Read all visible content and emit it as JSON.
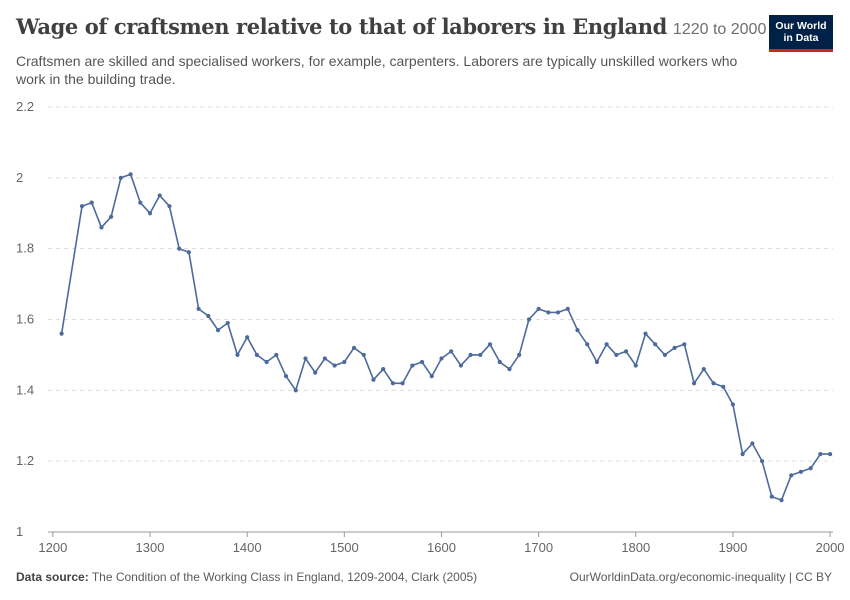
{
  "header": {
    "title": "Wage of craftsmen relative to that of laborers in England",
    "date_range": "1220 to 2000",
    "subtitle": "Craftsmen are skilled and specialised workers, for example, carpenters. Laborers are typically unskilled workers who work in the building trade."
  },
  "logo": {
    "line1": "Our World",
    "line2": "in Data",
    "bg": "#002147",
    "accent": "#ce261e"
  },
  "footer": {
    "source_label": "Data source:",
    "source_text": "The Condition of the Working Class in England, 1209-2004, Clark (2005)",
    "url_license": "OurWorldinData.org/economic-inequality | CC BY"
  },
  "chart_data": {
    "type": "line",
    "title": "Wage of craftsmen relative to that of laborers in England",
    "xlabel": "",
    "ylabel": "",
    "xlim": [
      1195,
      2003
    ],
    "ylim": [
      1,
      2.2
    ],
    "x_ticks": [
      1200,
      1300,
      1400,
      1500,
      1600,
      1700,
      1800,
      1900,
      2000
    ],
    "y_ticks": [
      1,
      1.2,
      1.4,
      1.6,
      1.8,
      2,
      2.2
    ],
    "grid": true,
    "color": "#4c6a9c",
    "series": [
      {
        "x": [
          1209,
          1230,
          1240,
          1250,
          1260,
          1270,
          1280,
          1290,
          1300,
          1310,
          1320,
          1330,
          1340,
          1350,
          1360,
          1370,
          1380,
          1390,
          1400,
          1410,
          1420,
          1430,
          1440,
          1450,
          1460,
          1470,
          1480,
          1490,
          1500,
          1510,
          1520,
          1530,
          1540,
          1550,
          1560,
          1570,
          1580,
          1590,
          1600,
          1610,
          1620,
          1630,
          1640,
          1650,
          1660,
          1670,
          1680,
          1690,
          1700,
          1710,
          1720,
          1730,
          1740,
          1750,
          1760,
          1770,
          1780,
          1790,
          1800,
          1810,
          1820,
          1830,
          1840,
          1850,
          1860,
          1870,
          1880,
          1890,
          1900,
          1910,
          1920,
          1930,
          1940,
          1950,
          1960,
          1970,
          1980,
          1990,
          2000
        ],
        "y": [
          1.56,
          1.92,
          1.93,
          1.86,
          1.89,
          2.0,
          2.01,
          1.93,
          1.9,
          1.95,
          1.92,
          1.8,
          1.79,
          1.63,
          1.61,
          1.57,
          1.59,
          1.5,
          1.55,
          1.5,
          1.48,
          1.5,
          1.44,
          1.4,
          1.49,
          1.45,
          1.49,
          1.47,
          1.48,
          1.52,
          1.5,
          1.43,
          1.46,
          1.42,
          1.42,
          1.47,
          1.48,
          1.44,
          1.49,
          1.51,
          1.47,
          1.5,
          1.5,
          1.53,
          1.48,
          1.46,
          1.5,
          1.6,
          1.63,
          1.62,
          1.62,
          1.63,
          1.57,
          1.53,
          1.48,
          1.53,
          1.5,
          1.51,
          1.47,
          1.56,
          1.53,
          1.5,
          1.52,
          1.53,
          1.42,
          1.46,
          1.42,
          1.41,
          1.36,
          1.22,
          1.25,
          1.2,
          1.1,
          1.09,
          1.16,
          1.17,
          1.18,
          1.22,
          1.22
        ]
      }
    ]
  }
}
